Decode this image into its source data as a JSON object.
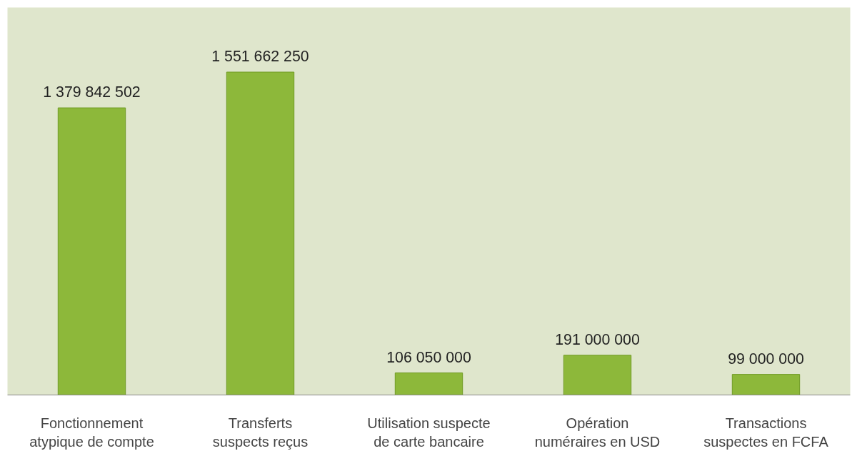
{
  "chart_data": {
    "type": "bar",
    "categories": [
      "Fonctionnement atypique de compte",
      "Transferts suspects reçus",
      "Utilisation suspecte de carte bancaire",
      "Opération numéraires en USD",
      "Transactions suspectes en FCFA"
    ],
    "values": [
      1379842502,
      1551662250,
      106050000,
      191000000,
      99000000
    ],
    "value_labels": [
      "1 379 842 502",
      "1 551 662 250",
      "106 050 000",
      "191 000 000",
      "99 000 000"
    ],
    "color": "#8db83a",
    "grid": false
  }
}
